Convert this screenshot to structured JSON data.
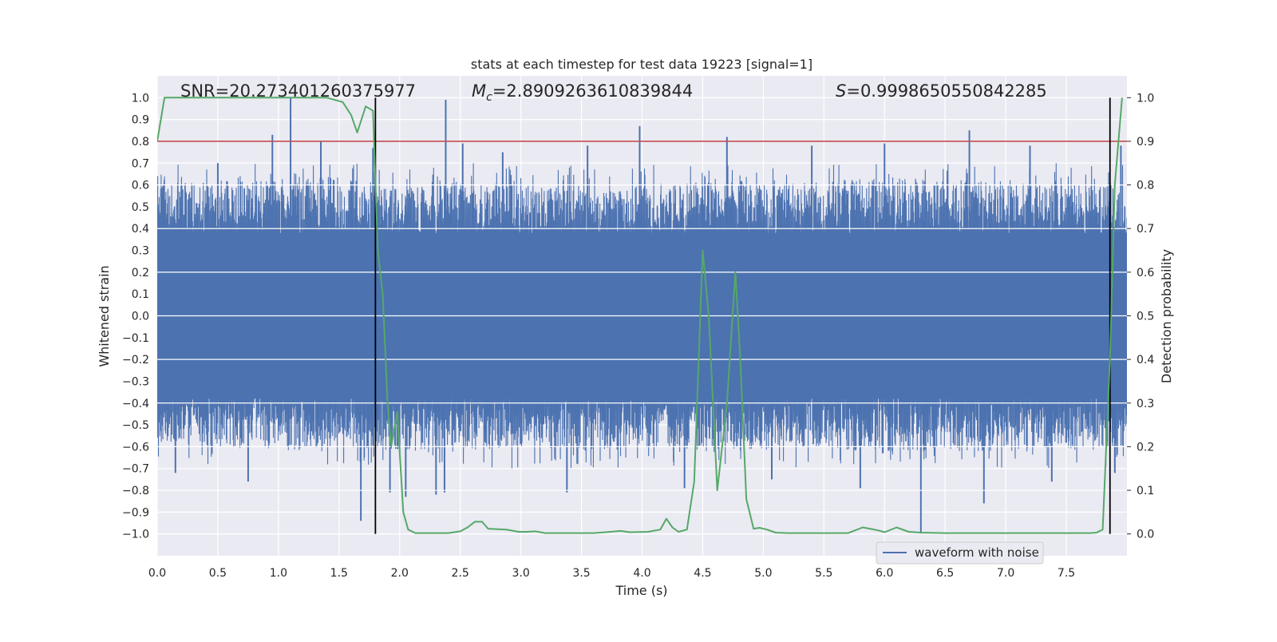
{
  "chart_data": {
    "type": "line",
    "title": "stats at each timestep for test data 19223 [signal=1]",
    "xlabel": "Time (s)",
    "ylabel": "Whitened strain",
    "y2label": "Detection probability",
    "xlim": [
      0,
      8
    ],
    "ylim": [
      -1.1,
      1.1
    ],
    "y2lim": [
      -0.05,
      1.05
    ],
    "x_ticks": [
      0.0,
      0.5,
      1.0,
      1.5,
      2.0,
      2.5,
      3.0,
      3.5,
      4.0,
      4.5,
      5.0,
      5.5,
      6.0,
      6.5,
      7.0,
      7.5
    ],
    "y_ticks": [
      -1.0,
      -0.9,
      -0.8,
      -0.7,
      -0.6,
      -0.5,
      -0.4,
      -0.3,
      -0.2,
      -0.1,
      0.0,
      0.1,
      0.2,
      0.3,
      0.4,
      0.5,
      0.6,
      0.7,
      0.8,
      0.9,
      1.0
    ],
    "y2_ticks": [
      0.0,
      0.1,
      0.2,
      0.3,
      0.4,
      0.5,
      0.6,
      0.7,
      0.8,
      0.9,
      1.0
    ],
    "grid": true,
    "annotations": {
      "snr": "SNR=20.273401260375977",
      "mc_prefix": "M",
      "mc_sub": "c",
      "mc_value": "=2.8909263610839844",
      "s_prefix": "S",
      "s_value": "=0.9998650550842285"
    },
    "threshold": {
      "value": 0.9,
      "axis": "y2",
      "color": "#c44e52"
    },
    "vlines": [
      1.8,
      7.86
    ],
    "legend": {
      "label": "waveform with noise",
      "location": "lower-right"
    },
    "colors": {
      "waveform": "#4c72b0",
      "probability": "#55a868",
      "threshold": "#c44e52",
      "vline": "#000000",
      "plot_bg": "#eaeaf2"
    },
    "waveform_envelope": {
      "x": [
        0.0,
        0.5,
        1.0,
        1.5,
        2.0,
        2.5,
        3.0,
        3.5,
        4.0,
        4.5,
        5.0,
        5.5,
        6.0,
        6.5,
        7.0,
        7.5,
        8.0
      ],
      "typical_high": [
        0.6,
        0.62,
        0.66,
        0.64,
        0.58,
        0.62,
        0.6,
        0.58,
        0.6,
        0.62,
        0.6,
        0.62,
        0.64,
        0.62,
        0.62,
        0.6,
        0.6
      ],
      "typical_low": [
        -0.58,
        -0.6,
        -0.62,
        -0.6,
        -0.62,
        -0.62,
        -0.6,
        -0.62,
        -0.6,
        -0.62,
        -0.62,
        -0.6,
        -0.64,
        -0.62,
        -0.62,
        -0.62,
        -0.6
      ],
      "peaks": [
        {
          "x": 0.05,
          "y": 0.6
        },
        {
          "x": 0.5,
          "y": 0.7
        },
        {
          "x": 0.95,
          "y": 0.83
        },
        {
          "x": 1.1,
          "y": 1.0
        },
        {
          "x": 1.35,
          "y": 0.8
        },
        {
          "x": 1.78,
          "y": 0.77
        },
        {
          "x": 2.38,
          "y": 0.99
        },
        {
          "x": 2.52,
          "y": 0.79
        },
        {
          "x": 2.85,
          "y": 0.75
        },
        {
          "x": 3.55,
          "y": 0.78
        },
        {
          "x": 3.98,
          "y": 0.87
        },
        {
          "x": 4.7,
          "y": 0.82
        },
        {
          "x": 5.4,
          "y": 0.78
        },
        {
          "x": 6.0,
          "y": 0.79
        },
        {
          "x": 6.7,
          "y": 0.85
        },
        {
          "x": 7.2,
          "y": 0.78
        },
        {
          "x": 7.95,
          "y": 0.78
        }
      ],
      "troughs": [
        {
          "x": 0.15,
          "y": -0.72
        },
        {
          "x": 0.75,
          "y": -0.76
        },
        {
          "x": 1.68,
          "y": -0.94
        },
        {
          "x": 1.92,
          "y": -0.81
        },
        {
          "x": 2.05,
          "y": -0.83
        },
        {
          "x": 2.3,
          "y": -0.82
        },
        {
          "x": 2.37,
          "y": -0.81
        },
        {
          "x": 3.38,
          "y": -0.81
        },
        {
          "x": 4.35,
          "y": -0.79
        },
        {
          "x": 5.07,
          "y": -0.75
        },
        {
          "x": 5.8,
          "y": -0.79
        },
        {
          "x": 6.3,
          "y": -1.0
        },
        {
          "x": 6.82,
          "y": -0.86
        },
        {
          "x": 7.38,
          "y": -0.76
        },
        {
          "x": 7.9,
          "y": -0.72
        }
      ]
    },
    "series": [
      {
        "name": "detection probability",
        "axis": "y2",
        "x": [
          0.0,
          0.06,
          0.2,
          0.5,
          1.0,
          1.4,
          1.53,
          1.6,
          1.65,
          1.72,
          1.78,
          1.82,
          1.86,
          1.9,
          1.93,
          1.98,
          2.03,
          2.07,
          2.13,
          2.2,
          2.4,
          2.5,
          2.56,
          2.62,
          2.68,
          2.73,
          2.88,
          2.98,
          3.05,
          3.12,
          3.2,
          3.4,
          3.6,
          3.7,
          3.82,
          3.9,
          4.05,
          4.15,
          4.2,
          4.25,
          4.3,
          4.37,
          4.43,
          4.5,
          4.55,
          4.62,
          4.7,
          4.77,
          4.81,
          4.86,
          4.92,
          4.97,
          5.03,
          5.1,
          5.2,
          5.4,
          5.6,
          5.7,
          5.82,
          5.88,
          5.95,
          6.0,
          6.1,
          6.2,
          6.3,
          6.5,
          6.8,
          7.3,
          7.5,
          7.7,
          7.75,
          7.8,
          7.86,
          7.9,
          7.96
        ],
        "values": [
          0.9,
          1.0,
          1.0,
          1.0,
          1.0,
          1.0,
          0.99,
          0.96,
          0.92,
          0.98,
          0.97,
          0.65,
          0.55,
          0.3,
          0.2,
          0.28,
          0.05,
          0.01,
          0.002,
          0.002,
          0.002,
          0.006,
          0.015,
          0.028,
          0.028,
          0.012,
          0.01,
          0.005,
          0.005,
          0.006,
          0.002,
          0.002,
          0.002,
          0.004,
          0.007,
          0.004,
          0.005,
          0.01,
          0.035,
          0.015,
          0.005,
          0.01,
          0.12,
          0.65,
          0.5,
          0.1,
          0.3,
          0.6,
          0.4,
          0.08,
          0.012,
          0.014,
          0.01,
          0.003,
          0.002,
          0.002,
          0.002,
          0.002,
          0.015,
          0.012,
          0.008,
          0.004,
          0.015,
          0.005,
          0.003,
          0.002,
          0.002,
          0.002,
          0.002,
          0.002,
          0.003,
          0.01,
          0.4,
          0.8,
          1.0
        ]
      }
    ]
  }
}
